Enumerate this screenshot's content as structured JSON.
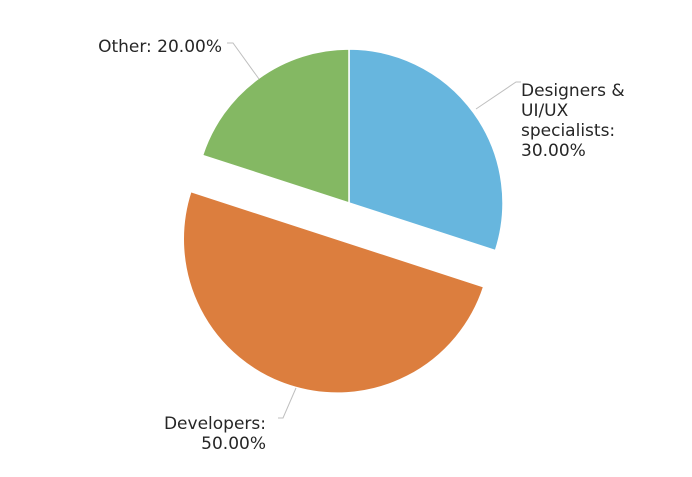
{
  "chart_data": {
    "type": "pie",
    "title": "",
    "exploded": "Developers",
    "slices": [
      {
        "name": "Designers & UI/UX specialists",
        "value": 30.0,
        "color": "#67b6de",
        "label_lines": [
          "Designers &",
          "UI/UX",
          "specialists:",
          "30.00%"
        ]
      },
      {
        "name": "Developers",
        "value": 50.0,
        "color": "#dc7e3e",
        "label_lines": [
          "Developers:",
          "50.00%"
        ]
      },
      {
        "name": "Other",
        "value": 20.0,
        "color": "#84b863",
        "label_lines": [
          "Other: 20.00%"
        ]
      }
    ]
  }
}
